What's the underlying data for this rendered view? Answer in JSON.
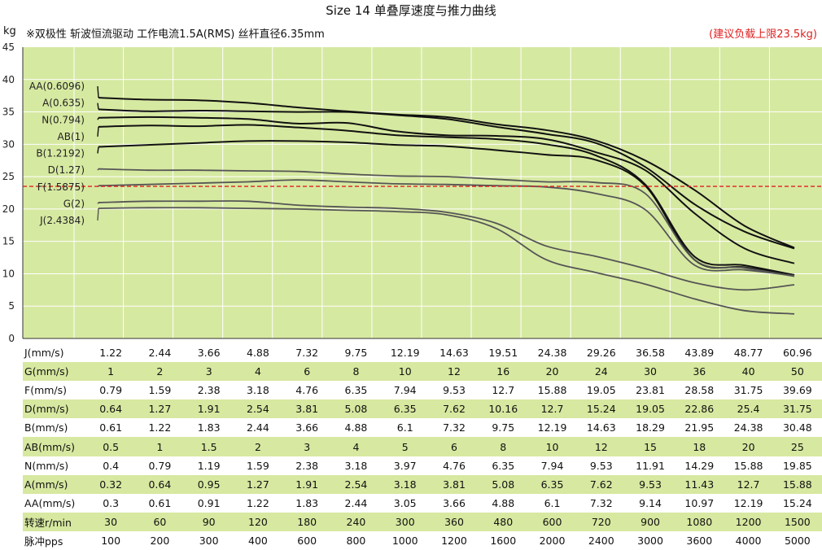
{
  "title": "Size 14 单叠厚速度与推力曲线",
  "unit": "kg",
  "subtitle": "※双极性 斩波恒流驱动 工作电流1.5A(RMS)  丝杆直径6.35mm",
  "recommendation": "(建议负载上限23.5kg)",
  "colors": {
    "plot_bg": "#d6e9a1",
    "grid": "#ffffff",
    "dark_line": "#111111",
    "gray_line": "#555555",
    "limit": "#e02020",
    "table_green": "#d7e8a0"
  },
  "chart_data": {
    "type": "line",
    "ylim": [
      0,
      45
    ],
    "yticks": [
      0,
      5,
      10,
      15,
      20,
      25,
      30,
      35,
      40,
      45
    ],
    "limit_line": 23.5,
    "x_positions": 15,
    "series": [
      {
        "name": "AA(0.6096)",
        "values": [
          37.2,
          36.9,
          36.8,
          36.4,
          35.7,
          35.1,
          34.6,
          34.2,
          33.1,
          32.2,
          30.6,
          27.5,
          22.9,
          17.4,
          14.0
        ]
      },
      {
        "name": "A(0.635)",
        "values": [
          35.4,
          35.1,
          35.2,
          35.1,
          35.0,
          35.0,
          34.5,
          33.9,
          32.7,
          31.6,
          30.2,
          26.5,
          20.7,
          16.5,
          13.9
        ]
      },
      {
        "name": "N(0.794)",
        "values": [
          34.1,
          34.2,
          34.1,
          33.9,
          33.2,
          33.3,
          32.0,
          31.4,
          31.3,
          30.8,
          28.8,
          26.0,
          19.3,
          13.9,
          11.6
        ]
      },
      {
        "name": "AB(1)",
        "values": [
          32.7,
          32.9,
          32.8,
          33.0,
          32.6,
          32.1,
          31.4,
          31.1,
          30.8,
          30.0,
          28.3,
          23.8,
          12.6,
          11.3,
          9.8
        ]
      },
      {
        "name": "B(1.2192)",
        "values": [
          29.6,
          29.9,
          30.2,
          30.5,
          30.5,
          30.3,
          29.9,
          29.7,
          29.1,
          28.4,
          27.6,
          23.6,
          12.1,
          11.0,
          9.8
        ]
      },
      {
        "name": "D(1.27)",
        "values": [
          26.2,
          26.0,
          26.0,
          25.9,
          25.8,
          25.4,
          25.1,
          25.0,
          24.6,
          24.2,
          24.1,
          22.4,
          12.1,
          10.9,
          9.6
        ]
      },
      {
        "name": "F(1.5875)",
        "values": [
          23.6,
          23.8,
          24.0,
          24.2,
          24.5,
          24.2,
          23.9,
          23.8,
          23.6,
          23.4,
          22.4,
          19.9,
          11.3,
          10.6,
          9.7
        ]
      },
      {
        "name": "G(2)",
        "values": [
          21.0,
          21.2,
          21.2,
          21.2,
          20.6,
          20.3,
          20.1,
          19.5,
          17.8,
          14.3,
          12.7,
          10.8,
          8.6,
          7.5,
          8.3
        ]
      },
      {
        "name": "J(2.4384)",
        "values": [
          20.1,
          20.2,
          20.2,
          20.1,
          20.0,
          19.8,
          19.6,
          19.1,
          17.0,
          12.2,
          10.2,
          8.4,
          6.1,
          4.3,
          3.8
        ]
      }
    ],
    "table": {
      "rows": [
        {
          "label": "J(mm/s)",
          "values": [
            "1.22",
            "2.44",
            "3.66",
            "4.88",
            "7.32",
            "9.75",
            "12.19",
            "14.63",
            "19.51",
            "24.38",
            "29.26",
            "36.58",
            "43.89",
            "48.77",
            "60.96"
          ]
        },
        {
          "label": "G(mm/s)",
          "values": [
            "1",
            "2",
            "3",
            "4",
            "6",
            "8",
            "10",
            "12",
            "16",
            "20",
            "24",
            "30",
            "36",
            "40",
            "50"
          ]
        },
        {
          "label": "F(mm/s)",
          "values": [
            "0.79",
            "1.59",
            "2.38",
            "3.18",
            "4.76",
            "6.35",
            "7.94",
            "9.53",
            "12.7",
            "15.88",
            "19.05",
            "23.81",
            "28.58",
            "31.75",
            "39.69"
          ]
        },
        {
          "label": "D(mm/s)",
          "values": [
            "0.64",
            "1.27",
            "1.91",
            "2.54",
            "3.81",
            "5.08",
            "6.35",
            "7.62",
            "10.16",
            "12.7",
            "15.24",
            "19.05",
            "22.86",
            "25.4",
            "31.75"
          ]
        },
        {
          "label": "B(mm/s)",
          "values": [
            "0.61",
            "1.22",
            "1.83",
            "2.44",
            "3.66",
            "4.88",
            "6.1",
            "7.32",
            "9.75",
            "12.19",
            "14.63",
            "18.29",
            "21.95",
            "24.38",
            "30.48"
          ]
        },
        {
          "label": "AB(mm/s)",
          "values": [
            "0.5",
            "1",
            "1.5",
            "2",
            "3",
            "4",
            "5",
            "6",
            "8",
            "10",
            "12",
            "15",
            "18",
            "20",
            "25"
          ]
        },
        {
          "label": "N(mm/s)",
          "values": [
            "0.4",
            "0.79",
            "1.19",
            "1.59",
            "2.38",
            "3.18",
            "3.97",
            "4.76",
            "6.35",
            "7.94",
            "9.53",
            "11.91",
            "14.29",
            "15.88",
            "19.85"
          ]
        },
        {
          "label": "A(mm/s)",
          "values": [
            "0.32",
            "0.64",
            "0.95",
            "1.27",
            "1.91",
            "2.54",
            "3.18",
            "3.81",
            "5.08",
            "6.35",
            "7.62",
            "9.53",
            "11.43",
            "12.7",
            "15.88"
          ]
        },
        {
          "label": "AA(mm/s)",
          "values": [
            "0.3",
            "0.61",
            "0.91",
            "1.22",
            "1.83",
            "2.44",
            "3.05",
            "3.66",
            "4.88",
            "6.1",
            "7.32",
            "9.14",
            "10.97",
            "12.19",
            "15.24"
          ]
        },
        {
          "label": "转速r/min",
          "values": [
            "30",
            "60",
            "90",
            "120",
            "180",
            "240",
            "300",
            "360",
            "480",
            "600",
            "720",
            "900",
            "1080",
            "1200",
            "1500"
          ]
        },
        {
          "label": "脉冲pps",
          "values": [
            "100",
            "200",
            "300",
            "400",
            "600",
            "800",
            "1000",
            "1200",
            "1600",
            "2000",
            "2400",
            "3000",
            "3600",
            "4000",
            "5000"
          ]
        }
      ]
    }
  }
}
